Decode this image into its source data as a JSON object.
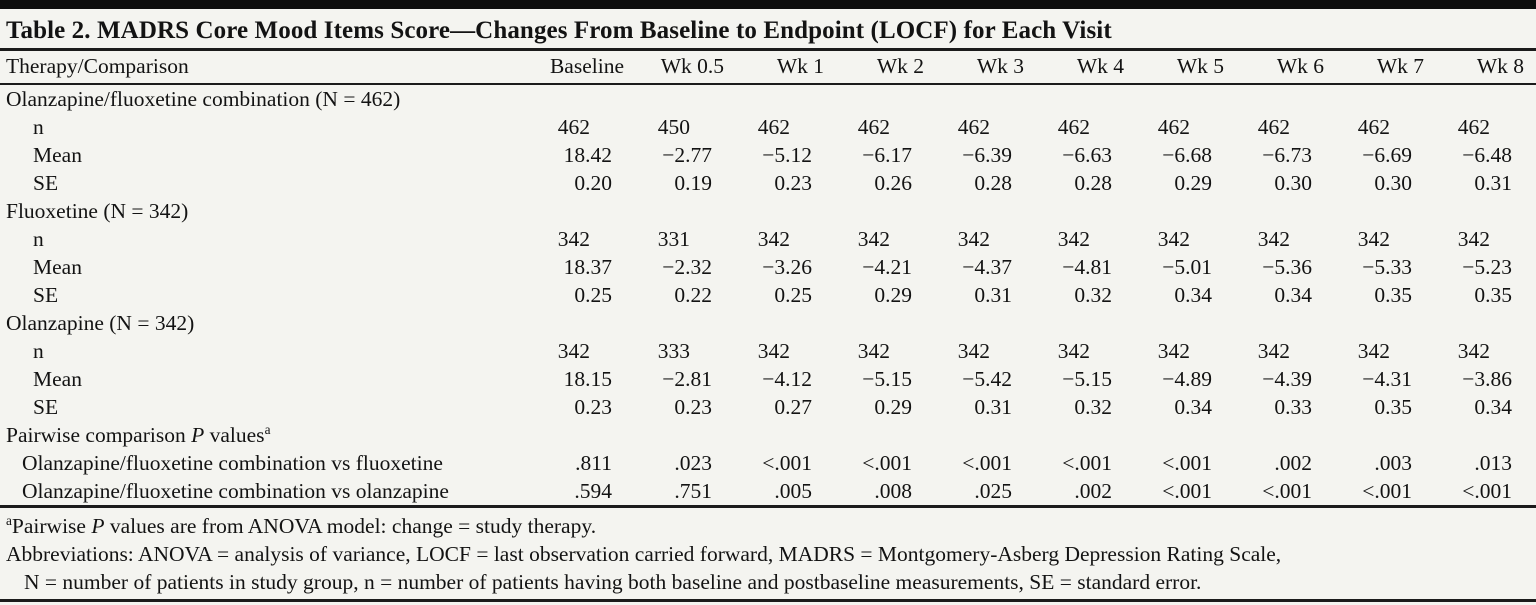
{
  "title": "Table 2. MADRS Core Mood Items Score—Changes From Baseline to Endpoint (LOCF) for Each Visit",
  "table": {
    "header": {
      "label": "Therapy/Comparison",
      "visits": [
        "Baseline",
        "Wk 0.5",
        "Wk 1",
        "Wk 2",
        "Wk 3",
        "Wk 4",
        "Wk 5",
        "Wk 6",
        "Wk 7",
        "Wk 8"
      ]
    },
    "sections": [
      {
        "label": "Olanzapine/fluoxetine combination (N = 462)",
        "rows": [
          {
            "label": "n",
            "type": "int",
            "values": [
              "462",
              "450",
              "462",
              "462",
              "462",
              "462",
              "462",
              "462",
              "462",
              "462"
            ]
          },
          {
            "label": "Mean",
            "type": "dec",
            "values": [
              "18.42",
              "−2.77",
              "−5.12",
              "−6.17",
              "−6.39",
              "−6.63",
              "−6.68",
              "−6.73",
              "−6.69",
              "−6.48"
            ]
          },
          {
            "label": "SE",
            "type": "dec",
            "values": [
              "0.20",
              "0.19",
              "0.23",
              "0.26",
              "0.28",
              "0.28",
              "0.29",
              "0.30",
              "0.30",
              "0.31"
            ]
          }
        ]
      },
      {
        "label": "Fluoxetine (N = 342)",
        "rows": [
          {
            "label": "n",
            "type": "int",
            "values": [
              "342",
              "331",
              "342",
              "342",
              "342",
              "342",
              "342",
              "342",
              "342",
              "342"
            ]
          },
          {
            "label": "Mean",
            "type": "dec",
            "values": [
              "18.37",
              "−2.32",
              "−3.26",
              "−4.21",
              "−4.37",
              "−4.81",
              "−5.01",
              "−5.36",
              "−5.33",
              "−5.23"
            ]
          },
          {
            "label": "SE",
            "type": "dec",
            "values": [
              "0.25",
              "0.22",
              "0.25",
              "0.29",
              "0.31",
              "0.32",
              "0.34",
              "0.34",
              "0.35",
              "0.35"
            ]
          }
        ]
      },
      {
        "label": "Olanzapine (N = 342)",
        "rows": [
          {
            "label": "n",
            "type": "int",
            "values": [
              "342",
              "333",
              "342",
              "342",
              "342",
              "342",
              "342",
              "342",
              "342",
              "342"
            ]
          },
          {
            "label": "Mean",
            "type": "dec",
            "values": [
              "18.15",
              "−2.81",
              "−4.12",
              "−5.15",
              "−5.42",
              "−5.15",
              "−4.89",
              "−4.39",
              "−4.31",
              "−3.86"
            ]
          },
          {
            "label": "SE",
            "type": "dec",
            "values": [
              "0.23",
              "0.23",
              "0.27",
              "0.29",
              "0.31",
              "0.32",
              "0.34",
              "0.33",
              "0.35",
              "0.34"
            ]
          }
        ]
      },
      {
        "label_parts": {
          "prefix": "Pairwise comparison ",
          "italic": "P",
          "mid": " values",
          "sup": "a"
        },
        "rows": [
          {
            "label": "Olanzapine/fluoxetine combination vs fluoxetine",
            "type": "pval",
            "values": [
              ".811",
              ".023",
              "<.001",
              "<.001",
              "<.001",
              "<.001",
              "<.001",
              ".002",
              ".003",
              ".013"
            ]
          },
          {
            "label": "Olanzapine/fluoxetine combination vs olanzapine",
            "type": "pval",
            "values": [
              ".594",
              ".751",
              ".005",
              ".008",
              ".025",
              ".002",
              "<.001",
              "<.001",
              "<.001",
              "<.001"
            ]
          }
        ]
      }
    ]
  },
  "footnotes": {
    "pairwise": {
      "sup": "a",
      "pre": "Pairwise ",
      "italic": "P",
      "post": " values are from ANOVA model: change = study therapy."
    },
    "abbrev_line1": "Abbreviations: ANOVA = analysis of variance, LOCF = last observation carried forward, MADRS = Montgomery-Asberg Depression Rating Scale,",
    "abbrev_line2": "N = number of patients in study group, n = number of patients having both baseline and postbaseline measurements, SE = standard error."
  }
}
